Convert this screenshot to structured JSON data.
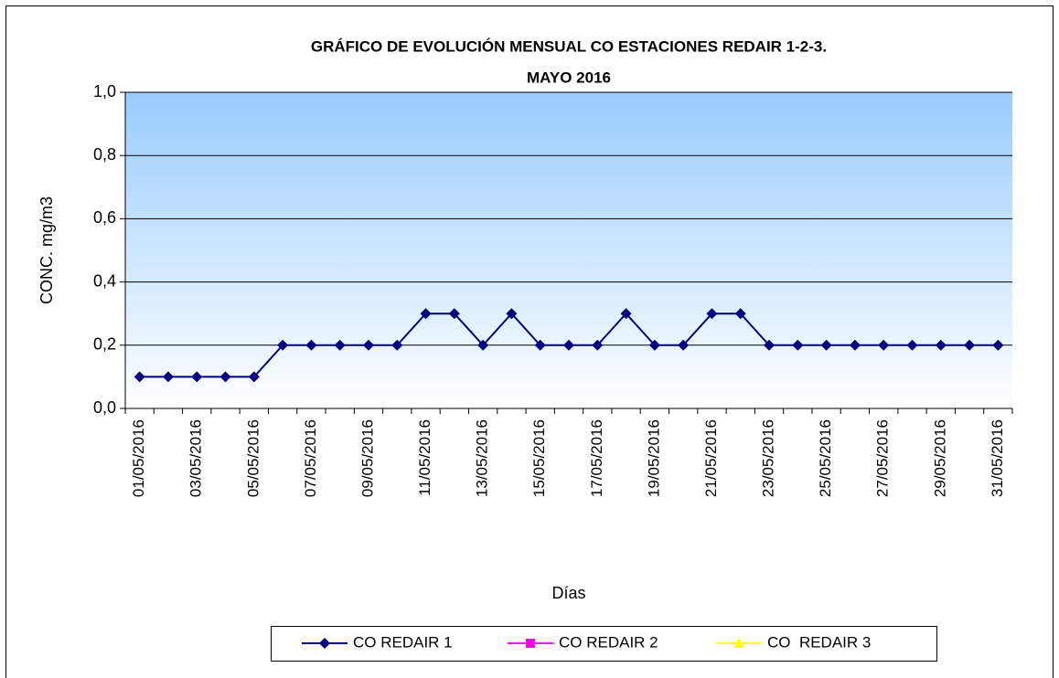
{
  "chart_data": {
    "type": "line",
    "title": [
      "GRÁFICO DE EVOLUCIÓN MENSUAL CO ESTACIONES REDAIR 1-2-3.",
      "MAYO 2016"
    ],
    "x_label": "Días",
    "y_label": "CONC. mg/m3",
    "categories": [
      "01/05/2016",
      null,
      "03/05/2016",
      null,
      "05/05/2016",
      null,
      "07/05/2016",
      null,
      "09/05/2016",
      null,
      "11/05/2016",
      null,
      "13/05/2016",
      null,
      "15/05/2016",
      null,
      "17/05/2016",
      null,
      "19/05/2016",
      null,
      "21/05/2016",
      null,
      "23/05/2016",
      null,
      "25/05/2016",
      null,
      "27/05/2016",
      null,
      "29/05/2016",
      null,
      "31/05/2016"
    ],
    "series": [
      {
        "name": "CO REDAIR 1",
        "color": "#000080",
        "marker": "diamond",
        "values": [
          0.1,
          0.1,
          0.1,
          0.1,
          0.1,
          0.2,
          0.2,
          0.2,
          0.2,
          0.2,
          0.3,
          0.3,
          0.2,
          0.3,
          0.2,
          0.2,
          0.2,
          0.3,
          0.2,
          0.2,
          0.3,
          0.3,
          0.2,
          0.2,
          0.2,
          0.2,
          0.2,
          0.2,
          0.2,
          0.2,
          0.2
        ]
      },
      {
        "name": "CO REDAIR 2",
        "color": "#ff00ff",
        "marker": "square",
        "values": [
          null,
          null,
          null,
          null,
          null,
          null,
          null,
          null,
          null,
          null,
          null,
          null,
          null,
          null,
          null,
          null,
          null,
          null,
          null,
          null,
          null,
          null,
          null,
          null,
          null,
          null,
          null,
          null,
          null,
          null,
          null
        ]
      },
      {
        "name": "CO  REDAIR 3",
        "color": "#ffff00",
        "marker": "triangle",
        "values": [
          null,
          null,
          null,
          null,
          null,
          null,
          null,
          null,
          null,
          null,
          null,
          null,
          null,
          null,
          null,
          null,
          null,
          null,
          null,
          null,
          null,
          null,
          null,
          null,
          null,
          null,
          null,
          null,
          null,
          null,
          null
        ]
      }
    ],
    "ylim": [
      0,
      1
    ],
    "yticks": [
      {
        "value": 0,
        "label": "0,0"
      },
      {
        "value": 0.2,
        "label": "0,2"
      },
      {
        "value": 0.4,
        "label": "0,4"
      },
      {
        "value": 0.6,
        "label": "0,6"
      },
      {
        "value": 0.8,
        "label": "0,8"
      },
      {
        "value": 1,
        "label": "1,0"
      }
    ],
    "grid": true,
    "legend": "bottom"
  }
}
